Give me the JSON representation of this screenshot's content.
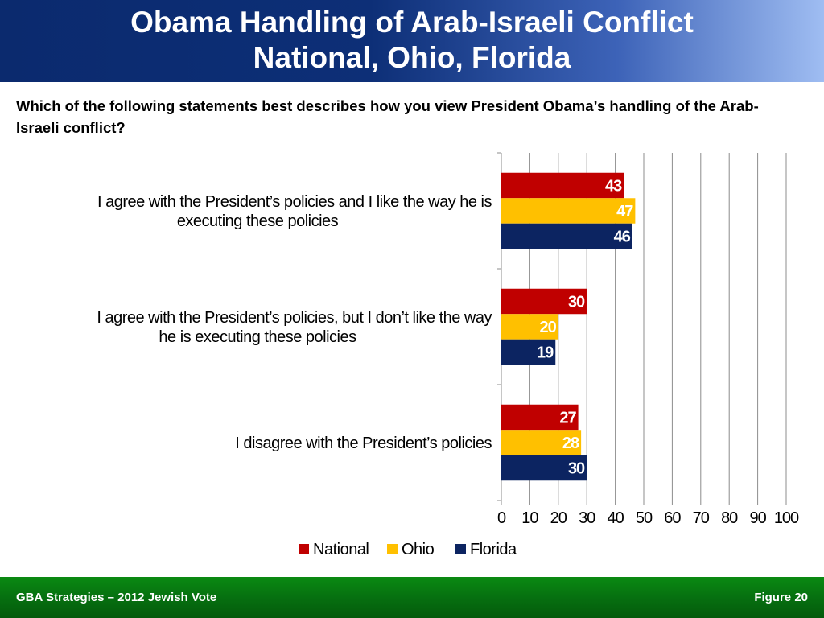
{
  "header": {
    "title_line1": "Obama Handling of Arab-Israeli Conflict",
    "title_line2": "National, Ohio, Florida"
  },
  "question": "Which of the following statements best describes how you view President Obama’s handling of the Arab-Israeli conflict?",
  "footer": {
    "left": "GBA Strategies – 2012 Jewish Vote",
    "right": "Figure  20"
  },
  "chart_data": {
    "type": "bar",
    "orientation": "horizontal",
    "categories": [
      [
        "I agree with the President’s policies and I like the way he is",
        "executing these policies"
      ],
      [
        "I agree with the President’s policies, but I don’t like the way",
        "he is executing these policies"
      ],
      [
        "I disagree with the President’s policies"
      ]
    ],
    "series": [
      {
        "name": "National",
        "color": "#c00000",
        "values": [
          43,
          30,
          27
        ]
      },
      {
        "name": "Ohio",
        "color": "#ffc000",
        "values": [
          47,
          20,
          28
        ]
      },
      {
        "name": "Florida",
        "color": "#0c2461",
        "values": [
          46,
          19,
          30
        ]
      }
    ],
    "xlim": [
      0,
      100
    ],
    "xticks": [
      0,
      10,
      20,
      30,
      40,
      50,
      60,
      70,
      80,
      90,
      100
    ],
    "grid": true,
    "legend": "bottom",
    "data_labels": true
  }
}
